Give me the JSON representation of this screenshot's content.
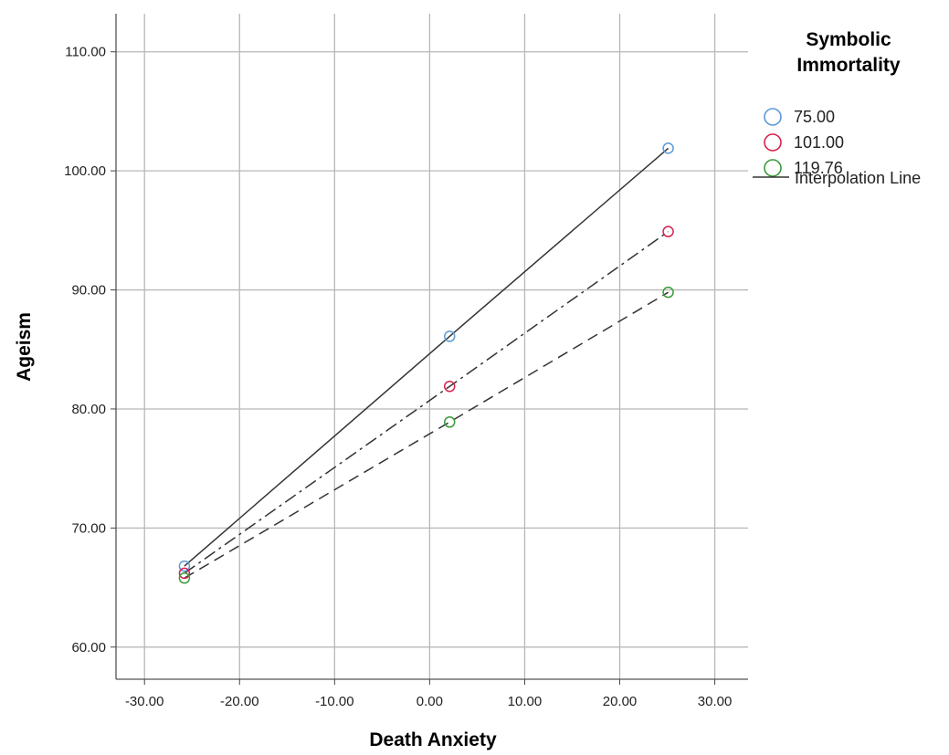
{
  "chart_data": {
    "type": "line",
    "xlabel": "Death Anxiety",
    "ylabel": "Ageism",
    "xlim": [
      -33,
      33.5
    ],
    "ylim": [
      57.3,
      113.2
    ],
    "x_ticks": [
      -30,
      -20,
      -10,
      0,
      10,
      20,
      30
    ],
    "x_tick_labels": [
      "-30.00",
      "-20.00",
      "-10.00",
      "0.00",
      "10.00",
      "20.00",
      "30.00"
    ],
    "y_ticks": [
      60,
      70,
      80,
      90,
      100,
      110
    ],
    "y_tick_labels": [
      "60.00",
      "70.00",
      "80.00",
      "90.00",
      "100.00",
      "110.00"
    ],
    "grid": true,
    "legend": {
      "title_lines": [
        "Symbolic",
        "Immortality"
      ],
      "position": "right",
      "line_label": "Interpolation Line"
    },
    "x": [
      -25.8,
      2.1,
      25.1
    ],
    "series": [
      {
        "name": "75.00",
        "values": [
          66.8,
          86.1,
          101.9
        ],
        "color": "#5b9bd5",
        "dash": "solid"
      },
      {
        "name": "101.00",
        "values": [
          66.2,
          81.9,
          94.9
        ],
        "color": "#d6224e",
        "dash": "dashdot"
      },
      {
        "name": "119.76",
        "values": [
          65.8,
          78.9,
          89.8
        ],
        "color": "#3a9b3a",
        "dash": "dashed"
      }
    ]
  }
}
